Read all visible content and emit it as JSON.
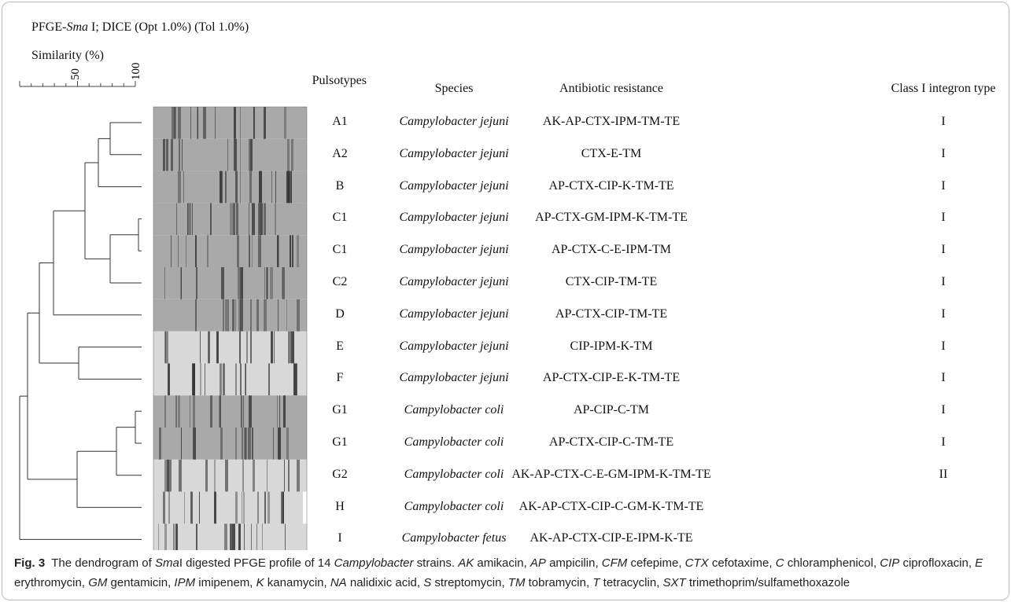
{
  "header": {
    "title": [
      {
        "text": "PFGE-"
      },
      {
        "text": "Sma",
        "italic": true
      },
      {
        "text": " I; DICE (Opt 1.0%) (Tol 1.0%)"
      }
    ],
    "similarity": "Similarity (%)",
    "scale_labels": [
      50,
      100
    ]
  },
  "table": {
    "columns": [
      "Pulsotypes",
      "Species",
      "Antibiotic resistance",
      "Class I integron type"
    ],
    "rows": [
      [
        "A1",
        "Campylobacter jejuni",
        "AK-AP-CTX-IPM-TM-TE",
        "I"
      ],
      [
        "A2",
        "Campylobacter jejuni",
        "CTX-E-TM",
        "I"
      ],
      [
        "B",
        "Campylobacter jejuni",
        "AP-CTX-CIP-K-TM-TE",
        "I"
      ],
      [
        "C1",
        "Campylobacter jejuni",
        "AP-CTX-GM-IPM-K-TM-TE",
        "I"
      ],
      [
        "C1",
        "Campylobacter jejuni",
        "AP-CTX-C-E-IPM-TM",
        "I"
      ],
      [
        "C2",
        "Campylobacter jejuni",
        "CTX-CIP-TM-TE",
        "I"
      ],
      [
        "D",
        "Campylobacter jejuni",
        "AP-CTX-CIP-TM-TE",
        "I"
      ],
      [
        "E",
        "Campylobacter jejuni",
        "CIP-IPM-K-TM",
        "I"
      ],
      [
        "F",
        "Campylobacter jejuni",
        "AP-CTX-CIP-E-K-TM-TE",
        "I"
      ],
      [
        "G1",
        "Campylobacter coli",
        "AP-CIP-C-TM",
        "I"
      ],
      [
        "G1",
        "Campylobacter coli",
        "AP-CTX-CIP-C-TM-TE",
        "I"
      ],
      [
        "G2",
        "Campylobacter coli",
        "AK-AP-CTX-C-E-GM-IPM-K-TM-TE",
        "II"
      ],
      [
        "H",
        "Campylobacter coli",
        "AK-AP-CTX-CIP-C-GM-K-TM-TE"
      ],
      [
        "I",
        "Campylobacter fetus",
        "AK-AP-CTX-CIP-E-IPM-K-TE"
      ]
    ]
  },
  "caption": [
    {
      "text": "Fig. 3",
      "bold": true
    },
    {
      "text": "  The dendrogram of "
    },
    {
      "text": "Sma",
      "italic": true
    },
    {
      "text": "I digested PFGE profile of 14 "
    },
    {
      "text": "Campylobacter",
      "italic": true
    },
    {
      "text": " strains. "
    },
    {
      "text": "AK",
      "italic": true
    },
    {
      "text": " amikacin, "
    },
    {
      "text": "AP",
      "italic": true
    },
    {
      "text": " ampicilin, "
    },
    {
      "text": "CFM",
      "italic": true
    },
    {
      "text": " cefepime, "
    },
    {
      "text": "CTX",
      "italic": true
    },
    {
      "text": " cefotaxime, "
    },
    {
      "text": "C",
      "italic": true
    },
    {
      "text": " chloramphenicol, "
    },
    {
      "text": "CIP",
      "italic": true
    },
    {
      "text": " ciprofloxacin, "
    },
    {
      "text": "E",
      "italic": true
    },
    {
      "text": " erythromycin, "
    },
    {
      "text": "GM",
      "italic": true
    },
    {
      "text": " gentamicin, "
    },
    {
      "text": "IPM",
      "italic": true
    },
    {
      "text": " imipenem, "
    },
    {
      "text": "K",
      "italic": true
    },
    {
      "text": " kanamycin, "
    },
    {
      "text": "NA",
      "italic": true
    },
    {
      "text": " nalidixic acid, "
    },
    {
      "text": "S",
      "italic": true
    },
    {
      "text": " streptomycin, "
    },
    {
      "text": "TM",
      "italic": true
    },
    {
      "text": " tobramycin, "
    },
    {
      "text": "T",
      "italic": true
    },
    {
      "text": " tetracyclin, "
    },
    {
      "text": "SXT",
      "italic": true
    },
    {
      "text": " trimethoprim/sulfamethoxazole"
    }
  ]
}
